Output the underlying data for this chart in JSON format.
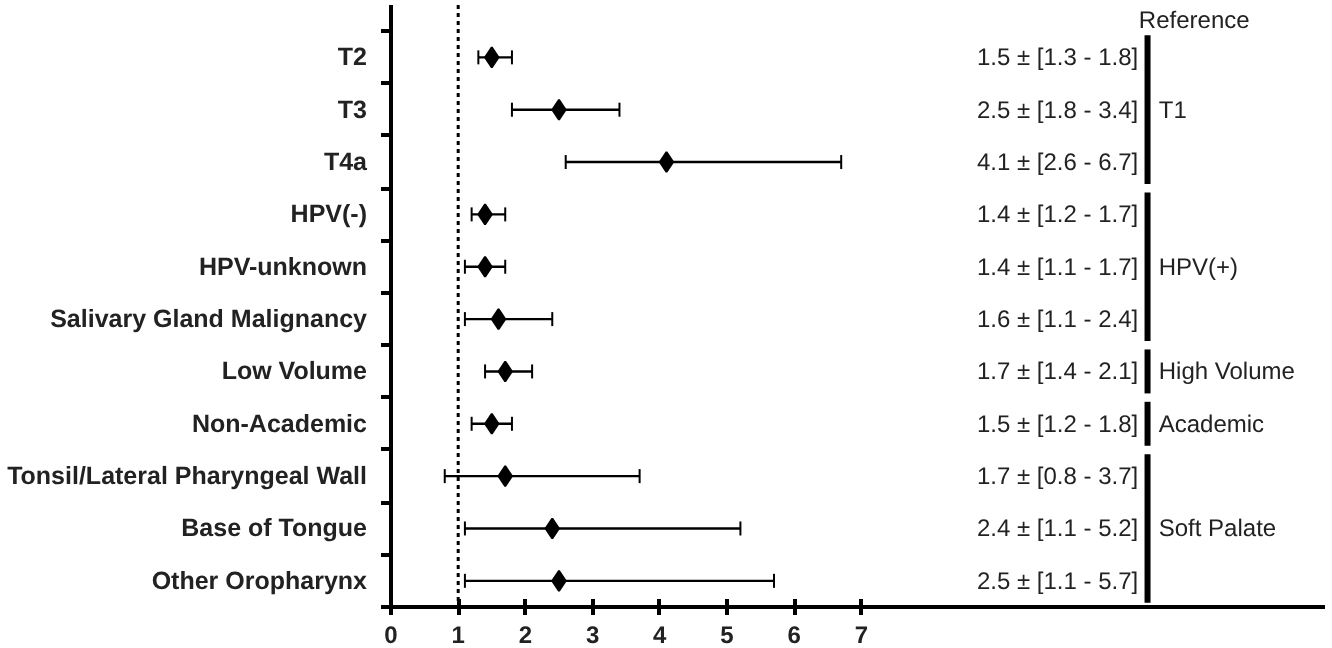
{
  "chart_data": {
    "type": "scatter",
    "orientation": "horizontal",
    "categories": [
      "T2",
      "T3",
      "T4a",
      "HPV(-)",
      "HPV-unknown",
      "Salivary Gland Malignancy",
      "Low Volume",
      "Non-Academic",
      "Tonsil/Lateral Pharyngeal Wall",
      "Base of Tongue",
      "Other Oropharynx"
    ],
    "series": [
      {
        "color": "#000000",
        "values": [
          1.5,
          2.5,
          4.1,
          1.4,
          1.4,
          1.6,
          1.7,
          1.5,
          1.7,
          2.4,
          2.5
        ],
        "errors": [
          [
            1.3,
            1.8
          ],
          [
            1.8,
            3.4
          ],
          [
            2.6,
            6.7
          ],
          [
            1.2,
            1.7
          ],
          [
            1.1,
            1.7
          ],
          [
            1.1,
            2.4
          ],
          [
            1.4,
            2.1
          ],
          [
            1.2,
            1.8
          ],
          [
            0.8,
            3.7
          ],
          [
            1.1,
            5.2
          ],
          [
            1.1,
            5.7
          ]
        ]
      }
    ],
    "marker": "diamond",
    "xlim": [
      0,
      13.9
    ],
    "xticks": [
      0,
      1,
      2,
      3,
      4,
      5,
      6,
      7
    ],
    "ref_lines": [
      {
        "axis": "x",
        "value": 1,
        "line_style": "dotted",
        "color": "#000000"
      }
    ],
    "annotations": [
      "Reference",
      "T1",
      "HPV(+)",
      "High Volume",
      "Academic",
      "Soft Palate",
      "1.5 ± [1.3 - 1.8]",
      "2.5 ± [1.8 - 3.4]",
      "4.1 ± [2.6 - 6.7]",
      "1.4 ± [1.2 - 1.7]",
      "1.4 ± [1.1 - 1.7]",
      "1.6 ± [1.1 - 2.4]",
      "1.7 ± [1.4 - 2.1]",
      "1.5 ± [1.2 - 1.8]",
      "1.7 ± [0.8 - 3.7]",
      "2.4 ± [1.1 - 5.2]",
      "2.5 ± [1.1 - 5.7]"
    ],
    "grid": false
  }
}
